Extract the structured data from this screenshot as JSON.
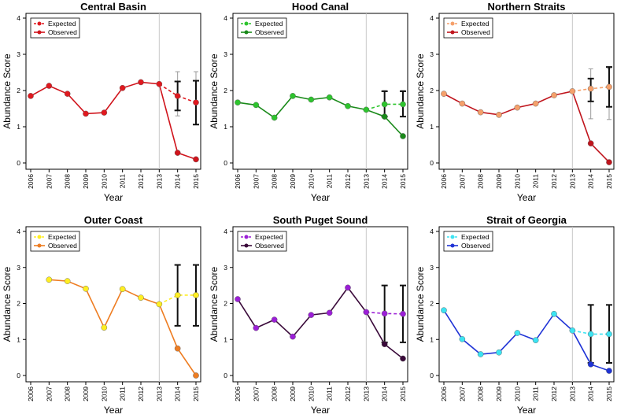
{
  "chart_data": [
    {
      "type": "line",
      "title": "Central Basin",
      "xlabel": "Year",
      "ylabel": "Abundance Score",
      "x": [
        2006,
        2007,
        2008,
        2009,
        2010,
        2011,
        2012,
        2013,
        2014,
        2015
      ],
      "ylim": [
        0,
        4
      ],
      "yticks": [
        0,
        1,
        2,
        3,
        4
      ],
      "series": [
        {
          "name": "Expected",
          "style": "dashed",
          "color": "#e0191f",
          "x": [
            2013,
            2014,
            2015
          ],
          "values": [
            2.18,
            1.85,
            1.67
          ],
          "ci_outer": [
            [
              1.3,
              2.52
            ],
            [
              1.06,
              2.52
            ]
          ],
          "ci_inner": [
            [
              1.45,
              2.25
            ],
            [
              1.06,
              2.27
            ]
          ]
        },
        {
          "name": "Observed",
          "style": "solid",
          "color": "#d0141c",
          "x": [
            2006,
            2007,
            2008,
            2009,
            2010,
            2011,
            2012,
            2013,
            2014,
            2015
          ],
          "values": [
            1.85,
            2.13,
            1.91,
            1.36,
            1.39,
            2.07,
            2.23,
            2.18,
            0.28,
            0.1
          ]
        }
      ]
    },
    {
      "type": "line",
      "title": "Hood Canal",
      "xlabel": "Year",
      "ylabel": "Abundance Score",
      "x": [
        2006,
        2007,
        2008,
        2009,
        2010,
        2011,
        2012,
        2013,
        2014,
        2015
      ],
      "ylim": [
        0,
        4
      ],
      "yticks": [
        0,
        1,
        2,
        3,
        4
      ],
      "series": [
        {
          "name": "Expected",
          "style": "dashed",
          "color": "#2ec42e",
          "x": [
            2013,
            2014,
            2015
          ],
          "values": [
            1.47,
            1.62,
            1.62
          ],
          "ci_outer": [
            [
              1.28,
              2.0
            ],
            [
              1.28,
              2.0
            ]
          ],
          "ci_inner": [
            [
              1.28,
              1.98
            ],
            [
              1.28,
              1.98
            ]
          ]
        },
        {
          "name": "Observed",
          "style": "solid",
          "color": "#1a8a1a",
          "x": [
            2006,
            2007,
            2008,
            2009,
            2010,
            2011,
            2012,
            2013,
            2014,
            2015
          ],
          "values": [
            1.67,
            1.6,
            1.25,
            1.85,
            1.75,
            1.81,
            1.57,
            1.47,
            1.28,
            0.74
          ]
        }
      ]
    },
    {
      "type": "line",
      "title": "Northern Straits",
      "xlabel": "Year",
      "ylabel": "Abundance Score",
      "x": [
        2006,
        2007,
        2008,
        2009,
        2010,
        2011,
        2012,
        2013,
        2014,
        2015
      ],
      "ylim": [
        0,
        4
      ],
      "yticks": [
        0,
        1,
        2,
        3,
        4
      ],
      "series": [
        {
          "name": "Expected",
          "style": "dashed",
          "color": "#f5a06b",
          "x": [
            2013,
            2014,
            2015
          ],
          "values": [
            1.98,
            2.05,
            2.1
          ],
          "ci_outer": [
            [
              1.22,
              2.6
            ],
            [
              1.2,
              2.6
            ]
          ],
          "ci_inner": [
            [
              1.7,
              2.33
            ],
            [
              1.55,
              2.65
            ]
          ]
        },
        {
          "name": "Observed",
          "style": "solid",
          "color": "#c0151d",
          "x": [
            2006,
            2007,
            2008,
            2009,
            2010,
            2011,
            2012,
            2013,
            2014,
            2015
          ],
          "values": [
            1.91,
            1.64,
            1.4,
            1.33,
            1.53,
            1.64,
            1.87,
            1.98,
            0.54,
            0.02
          ]
        }
      ]
    },
    {
      "type": "line",
      "title": "Outer Coast",
      "xlabel": "Year",
      "ylabel": "Abundance Score",
      "x": [
        2006,
        2007,
        2008,
        2009,
        2010,
        2011,
        2012,
        2013,
        2014,
        2015
      ],
      "ylim": [
        0,
        4
      ],
      "yticks": [
        0,
        1,
        2,
        3,
        4
      ],
      "series": [
        {
          "name": "Expected",
          "style": "dashed",
          "color": "#ffee22",
          "x": [
            2013,
            2014,
            2015
          ],
          "values": [
            1.98,
            2.23,
            2.23
          ],
          "ci_outer": [
            [
              1.38,
              3.07
            ],
            [
              1.38,
              3.07
            ]
          ],
          "ci_inner": [
            [
              1.38,
              3.07
            ],
            [
              1.38,
              3.07
            ]
          ]
        },
        {
          "name": "Observed",
          "style": "solid",
          "color": "#ee7d22",
          "x": [
            2007,
            2008,
            2009,
            2010,
            2011,
            2012,
            2013,
            2014,
            2015
          ],
          "values": [
            2.66,
            2.62,
            2.41,
            1.33,
            2.4,
            2.16,
            1.98,
            0.75,
            0.0
          ]
        }
      ]
    },
    {
      "type": "line",
      "title": "South Puget Sound",
      "xlabel": "Year",
      "ylabel": "Abundance Score",
      "x": [
        2006,
        2007,
        2008,
        2009,
        2010,
        2011,
        2012,
        2013,
        2014,
        2015
      ],
      "ylim": [
        0,
        4
      ],
      "yticks": [
        0,
        1,
        2,
        3,
        4
      ],
      "series": [
        {
          "name": "Expected",
          "style": "dashed",
          "color": "#9b1fd6",
          "x": [
            2013,
            2014,
            2015
          ],
          "values": [
            1.76,
            1.72,
            1.71
          ],
          "ci_outer": [
            [
              0.92,
              2.5
            ],
            [
              0.92,
              2.5
            ]
          ],
          "ci_inner": [
            [
              0.92,
              2.5
            ],
            [
              0.92,
              2.5
            ]
          ]
        },
        {
          "name": "Observed",
          "style": "solid",
          "color": "#3a0a3a",
          "x": [
            2006,
            2007,
            2008,
            2009,
            2010,
            2011,
            2012,
            2013,
            2014,
            2015
          ],
          "values": [
            2.12,
            1.32,
            1.55,
            1.08,
            1.68,
            1.74,
            2.44,
            1.76,
            0.87,
            0.47
          ]
        }
      ]
    },
    {
      "type": "line",
      "title": "Strait of Georgia",
      "xlabel": "Year",
      "ylabel": "Abundance Score",
      "x": [
        2006,
        2007,
        2008,
        2009,
        2010,
        2011,
        2012,
        2013,
        2014,
        2015
      ],
      "ylim": [
        0,
        4
      ],
      "yticks": [
        0,
        1,
        2,
        3,
        4
      ],
      "series": [
        {
          "name": "Expected",
          "style": "dashed",
          "color": "#3de3f2",
          "x": [
            2013,
            2014,
            2015
          ],
          "values": [
            1.25,
            1.15,
            1.15
          ],
          "ci_outer": [
            [
              0.35,
              1.96
            ],
            [
              0.35,
              1.96
            ]
          ],
          "ci_inner": [
            [
              0.35,
              1.96
            ],
            [
              0.35,
              1.96
            ]
          ]
        },
        {
          "name": "Observed",
          "style": "solid",
          "color": "#1f33d6",
          "x": [
            2006,
            2007,
            2008,
            2009,
            2010,
            2011,
            2012,
            2013,
            2014,
            2015
          ],
          "values": [
            1.81,
            1.01,
            0.59,
            0.64,
            1.18,
            0.98,
            1.71,
            1.25,
            0.31,
            0.13
          ]
        }
      ]
    }
  ],
  "colors": {
    "text": "#000000",
    "frame": "#000000",
    "reference_line": "#c8c8c8",
    "error_bar": "#111111",
    "error_bar_outer": "#9a9a9a"
  }
}
